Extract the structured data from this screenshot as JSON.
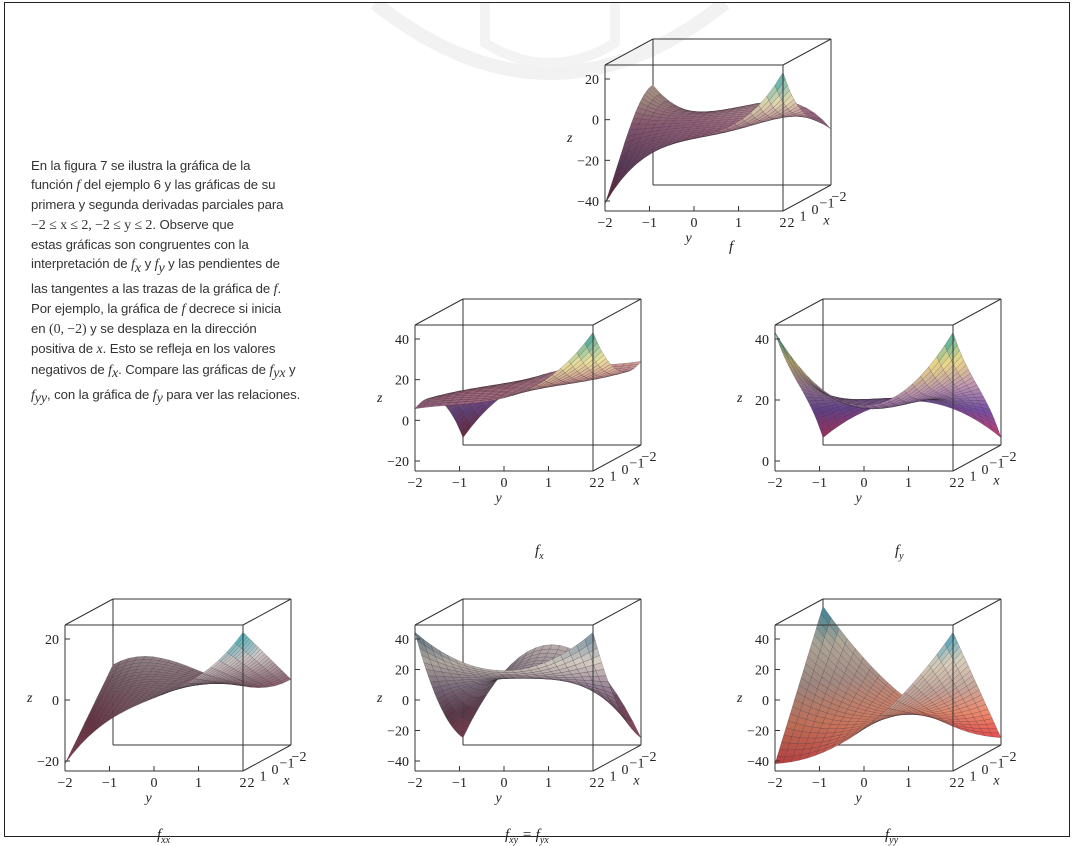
{
  "sidebar_text": {
    "line1": "En la figura 7 se ilustra la gráfica de la",
    "line2a": "función ",
    "line2b": "f",
    "line2c": " del ejemplo 6 y las gráficas de su",
    "line3": "primera y segunda derivadas parciales para",
    "line4a": "−2 ≤ x ≤ 2, −2 ≤ y ≤ 2",
    "line4b": ". Observe que",
    "line5": "estas gráficas son congruentes con la",
    "line6a": "interpretación de ",
    "line6b": "f",
    "line6c": "x",
    "line6d": " y ",
    "line6e": "f",
    "line6f": "y",
    "line6g": " y las pendientes de",
    "line7a": "las tangentes a las trazas de la gráfica de ",
    "line7b": "f",
    "line7c": ".",
    "line8a": "Por ejemplo, la gráfica de ",
    "line8b": "f",
    "line8c": " decrece si inicia",
    "line9a": "en ",
    "line9b": "(0, −2)",
    "line9c": " y se desplaza en la dirección",
    "line10a": "positiva de ",
    "line10b": "x",
    "line10c": ". Esto se refleja en los valores",
    "line11a": "negativos de ",
    "line11b": "f",
    "line11c": "x",
    "line11d": ". Compare las gráficas de ",
    "line11e": "f",
    "line11f": "yx",
    "line11g": " y",
    "line12a": "f",
    "line12b": "yy",
    "line12c": ", con la gráfica de ",
    "line12d": "f",
    "line12e": "y",
    "line12f": " para ver las relaciones."
  },
  "chart_data": [
    {
      "id": "f",
      "type": "surface",
      "caption": "f",
      "caption_sub": "",
      "zlabel": "z",
      "ylabel": "y",
      "xlabel": "x",
      "z_ticks": [
        "20",
        "0",
        "−20",
        "−40"
      ],
      "y_ticks": [
        "−2",
        "−1",
        "0",
        "1",
        "2"
      ],
      "x_ticks": [
        "2",
        "1",
        "0",
        "−1",
        "−2"
      ],
      "zlim": [
        -40,
        20
      ]
    },
    {
      "id": "fx",
      "type": "surface",
      "caption": "f",
      "caption_sub": "x",
      "zlabel": "z",
      "ylabel": "y",
      "xlabel": "x",
      "z_ticks": [
        "40",
        "20",
        "0",
        "−20"
      ],
      "y_ticks": [
        "−2",
        "−1",
        "0",
        "1",
        "2"
      ],
      "x_ticks": [
        "2",
        "1",
        "0",
        "−1",
        "−2"
      ],
      "zlim": [
        -20,
        40
      ]
    },
    {
      "id": "fy",
      "type": "surface",
      "caption": "f",
      "caption_sub": "y",
      "zlabel": "z",
      "ylabel": "y",
      "xlabel": "x",
      "z_ticks": [
        "40",
        "20",
        "0"
      ],
      "y_ticks": [
        "−2",
        "−1",
        "0",
        "1",
        "2"
      ],
      "x_ticks": [
        "2",
        "1",
        "0",
        "−1",
        "−2"
      ],
      "zlim": [
        0,
        40
      ]
    },
    {
      "id": "fxx",
      "type": "surface",
      "caption": "f",
      "caption_sub": "xx",
      "zlabel": "z",
      "ylabel": "y",
      "xlabel": "x",
      "z_ticks": [
        "20",
        "0",
        "−20"
      ],
      "y_ticks": [
        "−2",
        "−1",
        "0",
        "1",
        "2"
      ],
      "x_ticks": [
        "2",
        "1",
        "0",
        "−1",
        "−2"
      ],
      "zlim": [
        -20,
        20
      ]
    },
    {
      "id": "fxy",
      "type": "surface",
      "caption": "f",
      "caption_sub": "xy",
      "caption2": " = f",
      "caption2_sub": "yx",
      "zlabel": "z",
      "ylabel": "y",
      "xlabel": "x",
      "z_ticks": [
        "40",
        "20",
        "0",
        "−20",
        "−40"
      ],
      "y_ticks": [
        "−2",
        "−1",
        "0",
        "1",
        "2"
      ],
      "x_ticks": [
        "2",
        "1",
        "0",
        "−1",
        "−2"
      ],
      "zlim": [
        -40,
        40
      ]
    },
    {
      "id": "fyy",
      "type": "surface",
      "caption": "f",
      "caption_sub": "yy",
      "zlabel": "z",
      "ylabel": "y",
      "xlabel": "x",
      "z_ticks": [
        "40",
        "20",
        "0",
        "−20",
        "−40"
      ],
      "y_ticks": [
        "−2",
        "−1",
        "0",
        "1",
        "2"
      ],
      "x_ticks": [
        "2",
        "1",
        "0",
        "−1",
        "−2"
      ],
      "zlim": [
        -40,
        40
      ]
    }
  ]
}
